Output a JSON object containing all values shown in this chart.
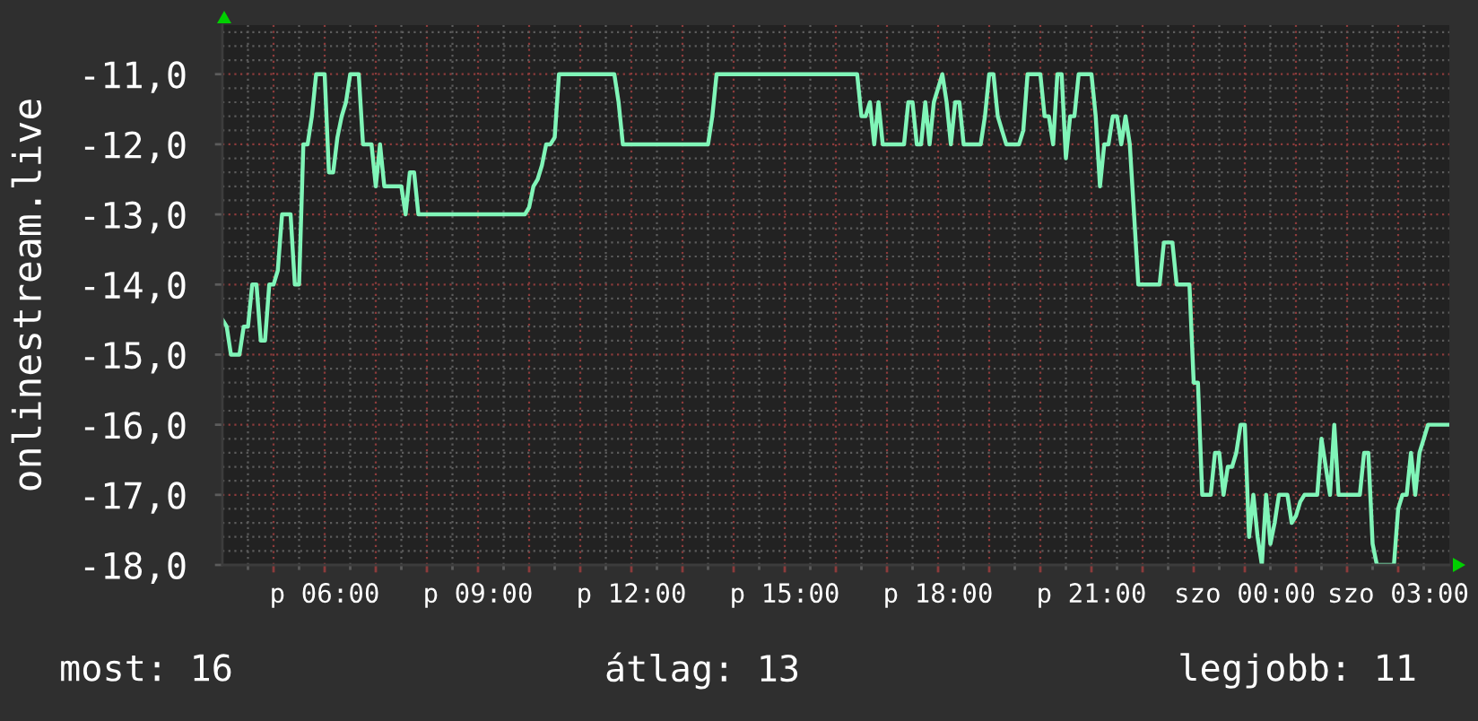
{
  "chart_data": {
    "type": "line",
    "ylabel": "onlinestream.live",
    "categories": [
      null,
      null,
      null,
      null,
      null,
      null,
      null,
      null,
      null,
      null,
      null,
      null,
      null,
      null,
      null,
      null,
      null,
      null,
      null,
      null,
      null,
      null,
      null,
      null,
      "p 06:00",
      null,
      null,
      null,
      null,
      null,
      null,
      null,
      null,
      null,
      null,
      null,
      null,
      null,
      null,
      null,
      null,
      null,
      null,
      null,
      null,
      null,
      null,
      null,
      null,
      null,
      null,
      null,
      null,
      null,
      null,
      null,
      null,
      null,
      null,
      null,
      "p 09:00",
      null,
      null,
      null,
      null,
      null,
      null,
      null,
      null,
      null,
      null,
      null,
      null,
      null,
      null,
      null,
      null,
      null,
      null,
      null,
      null,
      null,
      null,
      null,
      null,
      null,
      null,
      null,
      null,
      null,
      null,
      null,
      null,
      null,
      null,
      null,
      "p 12:00",
      null,
      null,
      null,
      null,
      null,
      null,
      null,
      null,
      null,
      null,
      null,
      null,
      null,
      null,
      null,
      null,
      null,
      null,
      null,
      null,
      null,
      null,
      null,
      null,
      null,
      null,
      null,
      null,
      null,
      null,
      null,
      null,
      null,
      null,
      null,
      "p 15:00",
      null,
      null,
      null,
      null,
      null,
      null,
      null,
      null,
      null,
      null,
      null,
      null,
      null,
      null,
      null,
      null,
      null,
      null,
      null,
      null,
      null,
      null,
      null,
      null,
      null,
      null,
      null,
      null,
      null,
      null,
      null,
      null,
      null,
      null,
      null,
      "p 18:00",
      null,
      null,
      null,
      null,
      null,
      null,
      null,
      null,
      null,
      null,
      null,
      null,
      null,
      null,
      null,
      null,
      null,
      null,
      null,
      null,
      null,
      null,
      null,
      null,
      null,
      null,
      null,
      null,
      null,
      null,
      null,
      null,
      null,
      null,
      null,
      "p 21:00",
      null,
      null,
      null,
      null,
      null,
      null,
      null,
      null,
      null,
      null,
      null,
      null,
      null,
      null,
      null,
      null,
      null,
      null,
      null,
      null,
      null,
      null,
      null,
      null,
      null,
      null,
      null,
      null,
      null,
      null,
      null,
      null,
      null,
      null,
      null,
      "szo 00:00",
      null,
      null,
      null,
      null,
      null,
      null,
      null,
      null,
      null,
      null,
      null,
      null,
      null,
      null,
      null,
      null,
      null,
      null,
      null,
      null,
      null,
      null,
      null,
      null,
      null,
      null,
      null,
      null,
      null,
      null,
      null,
      null,
      null,
      null,
      null,
      "szo 03:00",
      null,
      null,
      null,
      null,
      null,
      null,
      null,
      null,
      null,
      null,
      null,
      null
    ],
    "series": [
      {
        "color": "#80f5b8",
        "values": [
          -14.5,
          -14.6,
          -15.0,
          -15.0,
          -15.0,
          -14.6,
          -14.6,
          -14.0,
          -14.0,
          -14.8,
          -14.8,
          -14.0,
          -14.0,
          -13.8,
          -13.0,
          -13.0,
          -13.0,
          -14.0,
          -14.0,
          -12.0,
          -12.0,
          -11.6,
          -11.0,
          -11.0,
          -11.0,
          -12.4,
          -12.4,
          -11.9,
          -11.6,
          -11.4,
          -11.0,
          -11.0,
          -11.0,
          -12.0,
          -12.0,
          -12.0,
          -12.6,
          -12.0,
          -12.6,
          -12.6,
          -12.6,
          -12.6,
          -12.6,
          -13.0,
          -12.4,
          -12.4,
          -13.0,
          -13.0,
          -13.0,
          -13.0,
          -13.0,
          -13.0,
          -13.0,
          -13.0,
          -13.0,
          -13.0,
          -13.0,
          -13.0,
          -13.0,
          -13.0,
          -13.0,
          -13.0,
          -13.0,
          -13.0,
          -13.0,
          -13.0,
          -13.0,
          -13.0,
          -13.0,
          -13.0,
          -13.0,
          -13.0,
          -12.9,
          -12.6,
          -12.5,
          -12.3,
          -12.0,
          -12.0,
          -11.9,
          -11.0,
          -11.0,
          -11.0,
          -11.0,
          -11.0,
          -11.0,
          -11.0,
          -11.0,
          -11.0,
          -11.0,
          -11.0,
          -11.0,
          -11.0,
          -11.0,
          -11.4,
          -12.0,
          -12.0,
          -12.0,
          -12.0,
          -12.0,
          -12.0,
          -12.0,
          -12.0,
          -12.0,
          -12.0,
          -12.0,
          -12.0,
          -12.0,
          -12.0,
          -12.0,
          -12.0,
          -12.0,
          -12.0,
          -12.0,
          -12.0,
          -12.0,
          -11.6,
          -11.0,
          -11.0,
          -11.0,
          -11.0,
          -11.0,
          -11.0,
          -11.0,
          -11.0,
          -11.0,
          -11.0,
          -11.0,
          -11.0,
          -11.0,
          -11.0,
          -11.0,
          -11.0,
          -11.0,
          -11.0,
          -11.0,
          -11.0,
          -11.0,
          -11.0,
          -11.0,
          -11.0,
          -11.0,
          -11.0,
          -11.0,
          -11.0,
          -11.0,
          -11.0,
          -11.0,
          -11.0,
          -11.0,
          -11.0,
          -11.6,
          -11.6,
          -11.4,
          -12.0,
          -11.4,
          -12.0,
          -12.0,
          -12.0,
          -12.0,
          -12.0,
          -12.0,
          -11.4,
          -11.4,
          -12.0,
          -12.0,
          -11.4,
          -12.0,
          -11.4,
          -11.2,
          -11.0,
          -11.4,
          -12.0,
          -11.4,
          -11.4,
          -12.0,
          -12.0,
          -12.0,
          -12.0,
          -12.0,
          -11.6,
          -11.0,
          -11.0,
          -11.6,
          -11.8,
          -12.0,
          -12.0,
          -12.0,
          -12.0,
          -11.8,
          -11.0,
          -11.0,
          -11.0,
          -11.0,
          -11.6,
          -11.6,
          -12.0,
          -11.0,
          -11.0,
          -12.2,
          -11.6,
          -11.6,
          -11.0,
          -11.0,
          -11.0,
          -11.0,
          -11.6,
          -12.6,
          -12.0,
          -12.0,
          -11.6,
          -11.6,
          -12.0,
          -11.6,
          -12.0,
          -13.0,
          -14.0,
          -14.0,
          -14.0,
          -14.0,
          -14.0,
          -14.0,
          -13.4,
          -13.4,
          -13.4,
          -14.0,
          -14.0,
          -14.0,
          -14.0,
          -15.4,
          -15.4,
          -17.0,
          -17.0,
          -17.0,
          -16.4,
          -16.4,
          -17.0,
          -16.6,
          -16.6,
          -16.4,
          -16.0,
          -16.0,
          -17.6,
          -17.0,
          -17.6,
          -18.0,
          -17.0,
          -17.7,
          -17.4,
          -17.0,
          -17.0,
          -17.0,
          -17.4,
          -17.3,
          -17.1,
          -17.0,
          -17.0,
          -17.0,
          -17.0,
          -16.2,
          -16.6,
          -17.0,
          -16.0,
          -17.0,
          -17.0,
          -17.0,
          -17.0,
          -17.0,
          -17.0,
          -16.4,
          -16.4,
          -17.7,
          -18.0,
          -18.0,
          -18.0,
          -18.0,
          -18.0,
          -17.2,
          -17.0,
          -17.0,
          -16.4,
          -17.0,
          -16.4,
          -16.2,
          -16.0,
          -16.0,
          -16.0,
          -16.0,
          -16.0,
          -16.0
        ]
      }
    ],
    "ylim": [
      -18,
      -10.3
    ],
    "yticks": [
      {
        "value": -18,
        "label": "-18,0"
      },
      {
        "value": -17,
        "label": "-17,0"
      },
      {
        "value": -16,
        "label": "-16,0"
      },
      {
        "value": -15,
        "label": "-15,0"
      },
      {
        "value": -14,
        "label": "-14,0"
      },
      {
        "value": -13,
        "label": "-13,0"
      },
      {
        "value": -12,
        "label": "-12,0"
      },
      {
        "value": -11,
        "label": "-11,0"
      }
    ],
    "grid": true,
    "annotations": [
      "most: 16",
      "átlag: 13",
      "legjobb: 11"
    ]
  }
}
